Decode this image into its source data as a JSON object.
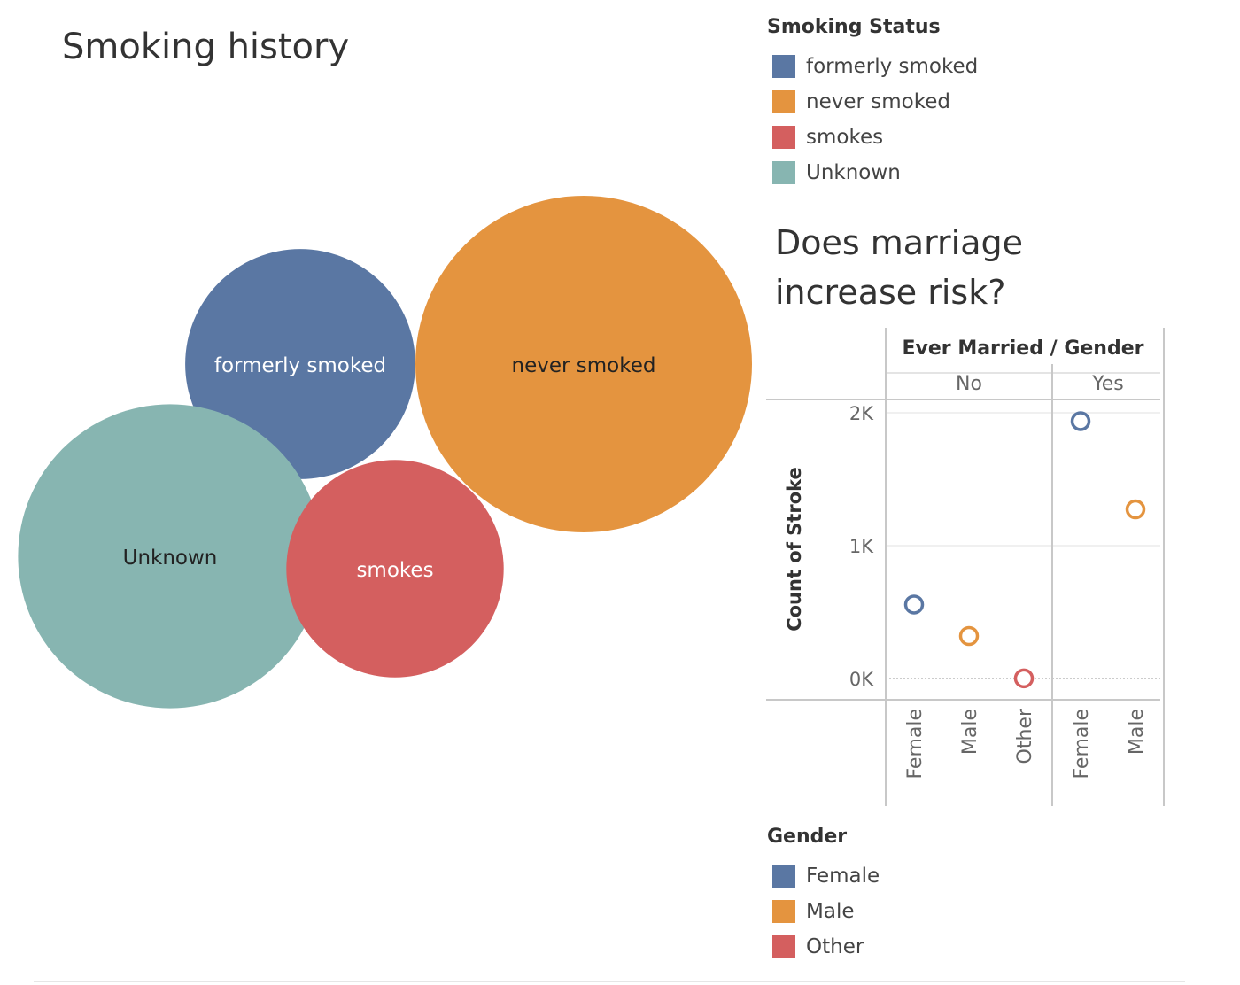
{
  "chart_data": [
    {
      "type": "bubble",
      "title": "Smoking history",
      "bubbles": [
        {
          "label": "never smoked",
          "value": 1892,
          "color": "#E4943F",
          "label_color": "#222222"
        },
        {
          "label": "formerly smoked",
          "value": 885,
          "color": "#5A77A3",
          "label_color": "#ffffff"
        },
        {
          "label": "Unknown",
          "value": 1544,
          "color": "#87B5B1",
          "label_color": "#222222"
        },
        {
          "label": "smokes",
          "value": 789,
          "color": "#D45F5F",
          "label_color": "#ffffff"
        }
      ]
    },
    {
      "type": "scatter",
      "title": "Does marriage increase risk?",
      "header": "Ever Married / Gender",
      "ylabel": "Count of Stroke",
      "ylim": [
        0,
        2000
      ],
      "yticks": [
        {
          "v": 0,
          "label": "0K"
        },
        {
          "v": 1000,
          "label": "1K"
        },
        {
          "v": 2000,
          "label": "2K"
        }
      ],
      "panels": [
        {
          "label": "No",
          "categories": [
            {
              "gender": "Female",
              "value": 557,
              "color": "#5A77A3"
            },
            {
              "gender": "Male",
              "value": 320,
              "color": "#E4943F"
            },
            {
              "gender": "Other",
              "value": 1,
              "color": "#D45F5F"
            }
          ]
        },
        {
          "label": "Yes",
          "categories": [
            {
              "gender": "Female",
              "value": 1937,
              "color": "#5A77A3"
            },
            {
              "gender": "Male",
              "value": 1273,
              "color": "#E4943F"
            }
          ]
        }
      ]
    }
  ],
  "legends": {
    "smoking": {
      "title": "Smoking Status",
      "items": [
        {
          "label": "formerly smoked",
          "color": "#5A77A3"
        },
        {
          "label": "never smoked",
          "color": "#E4943F"
        },
        {
          "label": "smokes",
          "color": "#D45F5F"
        },
        {
          "label": "Unknown",
          "color": "#87B5B1"
        }
      ]
    },
    "gender": {
      "title": "Gender",
      "items": [
        {
          "label": "Female",
          "color": "#5A77A3"
        },
        {
          "label": "Male",
          "color": "#E4943F"
        },
        {
          "label": "Other",
          "color": "#D45F5F"
        }
      ]
    }
  }
}
